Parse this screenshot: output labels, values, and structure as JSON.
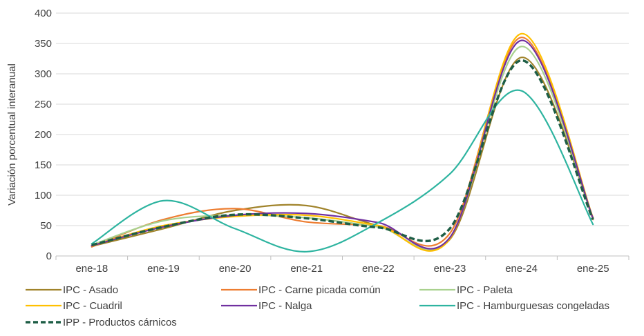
{
  "chart_data": {
    "type": "line",
    "xlabel": "",
    "ylabel": "Variación porcentual interanual",
    "ylim": [
      0,
      400
    ],
    "yticks": [
      "0",
      "50",
      "100",
      "150",
      "200",
      "250",
      "300",
      "350",
      "400"
    ],
    "categories": [
      "ene-18",
      "ene-19",
      "ene-20",
      "ene-21",
      "ene-22",
      "ene-23",
      "ene-24",
      "ene-25"
    ],
    "grid": true,
    "legend_position": "bottom",
    "series": [
      {
        "name": "IPC - Asado",
        "color": "#a0832a",
        "dashed": false,
        "values": [
          16,
          45,
          75,
          83,
          50,
          27,
          327,
          63
        ]
      },
      {
        "name": "IPC - Carne picada común",
        "color": "#ed7d31",
        "dashed": false,
        "values": [
          15,
          60,
          78,
          56,
          50,
          37,
          360,
          60
        ]
      },
      {
        "name": "IPC - Paleta",
        "color": "#a9d18e",
        "dashed": false,
        "values": [
          18,
          58,
          67,
          63,
          48,
          30,
          345,
          61
        ]
      },
      {
        "name": "IPC - Cuadril",
        "color": "#ffc000",
        "dashed": false,
        "values": [
          17,
          50,
          65,
          67,
          50,
          28,
          366,
          63
        ]
      },
      {
        "name": "IPC - Nalga",
        "color": "#7030a0",
        "dashed": false,
        "values": [
          17,
          48,
          67,
          70,
          55,
          30,
          355,
          62
        ]
      },
      {
        "name": "IPC - Hamburguesas congeladas",
        "color": "#2eb4a0",
        "dashed": false,
        "values": [
          20,
          91,
          45,
          7,
          55,
          135,
          272,
          52
        ]
      },
      {
        "name": "IPP - Productos cárnicos",
        "color": "#1e5e46",
        "dashed": true,
        "values": [
          18,
          48,
          68,
          62,
          47,
          45,
          322,
          60
        ]
      }
    ]
  }
}
